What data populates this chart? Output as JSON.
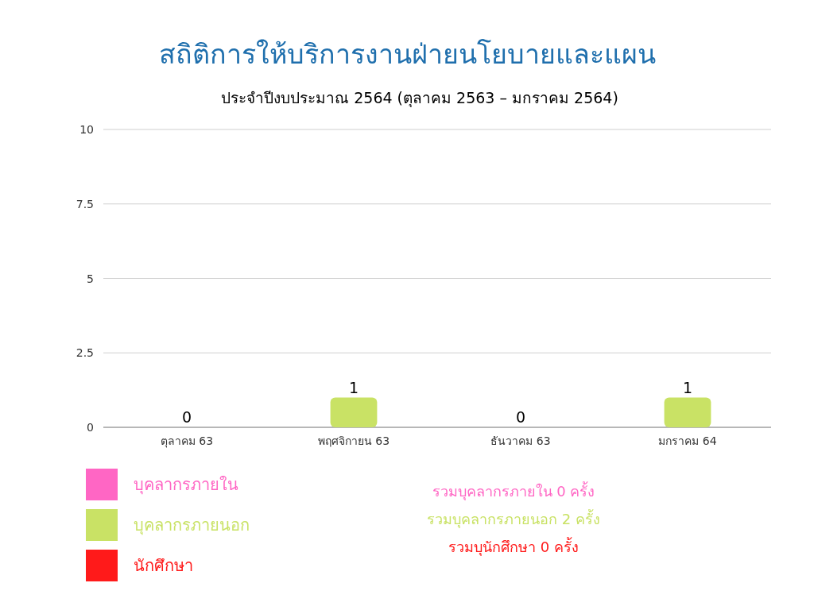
{
  "chart_data": {
    "type": "bar",
    "title": "สถิติการให้บริการงานฝ่ายนโยบายและแผน",
    "subtitle": "ประจำปีงบประมาณ 2564 (ตุลาคม 2563 – มกราคม 2564)",
    "categories": [
      "ตุลาคม 63",
      "พฤศจิกายน 63",
      "ธันวาคม 63",
      "มกราคม 64"
    ],
    "series": [
      {
        "name": "บุคลากรภายใน",
        "color": "#ff66c4",
        "values": [
          0,
          0,
          0,
          0
        ]
      },
      {
        "name": "บุคลากรภายนอก",
        "color": "#c9e265",
        "values": [
          0,
          1,
          0,
          1
        ],
        "value_labels": [
          "0",
          "1",
          "0",
          "1"
        ]
      },
      {
        "name": "นักศึกษา",
        "color": "#ff1a1a",
        "values": [
          0,
          0,
          0,
          0
        ]
      }
    ],
    "ylim": [
      0,
      10
    ],
    "yticks": [
      0,
      2.5,
      5,
      7.5,
      10
    ],
    "grid": "y",
    "legend": "bottom left",
    "annotations": [
      "รวมบุคลากรภายใน 0 ครั้ง",
      "รวมบุคลากรภายนอก 2 ครั้ง",
      "รวมบุนักศึกษา 0 ครั้ง"
    ]
  }
}
